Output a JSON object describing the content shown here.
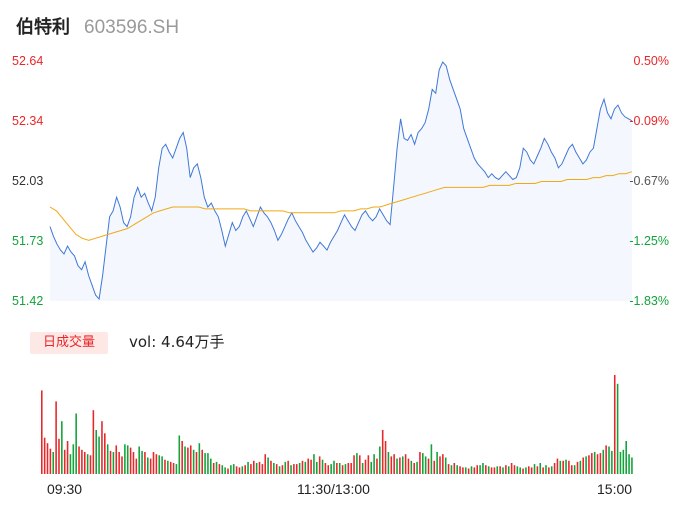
{
  "header": {
    "name": "伯特利",
    "code": "603596.SH"
  },
  "price_axis": [
    "52.64",
    "52.34",
    "52.03",
    "51.73",
    "51.42"
  ],
  "pct_axis": [
    "0.50%",
    "-0.09%",
    "-0.67%",
    "-1.25%",
    "-1.83%"
  ],
  "volume": {
    "tab_label": "日成交量",
    "summary": "vol: 4.64万手"
  },
  "time_axis": [
    "09:30",
    "11:30/13:00",
    "15:00"
  ],
  "colors": {
    "price_line": "#3f78d8",
    "avg_line": "#f0a915",
    "up": "#e8272a",
    "down": "#13a33b",
    "fill": "#f4f7fd"
  },
  "chart_data": {
    "type": "line",
    "title": "伯特利 603596.SH",
    "ylim": [
      51.42,
      52.64
    ],
    "y2lim": [
      -1.83,
      0.5
    ],
    "x_ticks": [
      "09:30",
      "11:30/13:00",
      "15:00"
    ],
    "series": [
      {
        "values": [
          51.8,
          51.75,
          51.71,
          51.68,
          51.66,
          51.7,
          51.67,
          51.65,
          51.6,
          51.58,
          51.62,
          51.55,
          51.5,
          51.45,
          51.43,
          51.55,
          51.7,
          51.85,
          51.88,
          51.95,
          51.9,
          51.82,
          51.8,
          51.85,
          51.95,
          52.0,
          51.95,
          51.97,
          51.92,
          51.88,
          51.95,
          52.1,
          52.2,
          52.22,
          52.18,
          52.15,
          52.2,
          52.25,
          52.28,
          52.2,
          52.05,
          52.1,
          52.12,
          52.05,
          51.95,
          51.9,
          51.92,
          51.88,
          51.85,
          51.78,
          51.7,
          51.76,
          51.82,
          51.78,
          51.8,
          51.85,
          51.88,
          51.84,
          51.8,
          51.85,
          51.9,
          51.87,
          51.85,
          51.82,
          51.78,
          51.73,
          51.76,
          51.8,
          51.84,
          51.87,
          51.83,
          51.8,
          51.77,
          51.73,
          51.7,
          51.67,
          51.69,
          51.72,
          51.7,
          51.68,
          51.72,
          51.75,
          51.78,
          51.82,
          51.86,
          51.83,
          51.8,
          51.78,
          51.82,
          51.86,
          51.88,
          51.85,
          51.83,
          51.85,
          51.89,
          51.86,
          51.83,
          51.81,
          52.0,
          52.2,
          52.35,
          52.25,
          52.24,
          52.27,
          52.22,
          52.28,
          52.3,
          52.33,
          52.4,
          52.5,
          52.48,
          52.6,
          52.64,
          52.62,
          52.55,
          52.5,
          52.45,
          52.4,
          52.3,
          52.25,
          52.2,
          52.15,
          52.12,
          52.1,
          52.08,
          52.05,
          52.07,
          52.05,
          52.04,
          52.06,
          52.08,
          52.06,
          52.04,
          52.05,
          52.1,
          52.2,
          52.18,
          52.14,
          52.12,
          52.16,
          52.2,
          52.25,
          52.22,
          52.18,
          52.15,
          52.1,
          52.12,
          52.16,
          52.2,
          52.22,
          52.18,
          52.15,
          52.12,
          52.14,
          52.18,
          52.2,
          52.3,
          52.4,
          52.45,
          52.38,
          52.35,
          52.4,
          52.42,
          52.38,
          52.36,
          52.35,
          52.34
        ]
      },
      {
        "values": [
          51.9,
          51.88,
          51.84,
          51.8,
          51.76,
          51.74,
          51.73,
          51.74,
          51.75,
          51.76,
          51.77,
          51.78,
          51.79,
          51.81,
          51.83,
          51.85,
          51.87,
          51.88,
          51.89,
          51.9,
          51.9,
          51.9,
          51.9,
          51.9,
          51.89,
          51.89,
          51.89,
          51.89,
          51.89,
          51.89,
          51.89,
          51.88,
          51.88,
          51.88,
          51.88,
          51.88,
          51.88,
          51.87,
          51.87,
          51.87,
          51.87,
          51.87,
          51.87,
          51.87,
          51.87,
          51.88,
          51.88,
          51.88,
          51.89,
          51.89,
          51.9,
          51.9,
          51.91,
          51.92,
          51.93,
          51.94,
          51.95,
          51.96,
          51.97,
          51.98,
          51.99,
          52.0,
          52.0,
          52.0,
          52.0,
          52.0,
          52.0,
          52.0,
          52.01,
          52.01,
          52.01,
          52.01,
          52.02,
          52.02,
          52.02,
          52.02,
          52.03,
          52.03,
          52.03,
          52.03,
          52.04,
          52.04,
          52.04,
          52.04,
          52.05,
          52.05,
          52.06,
          52.06,
          52.07,
          52.07,
          52.08
        ]
      }
    ],
    "volume_bars": [
      0.76,
      0.33,
      0.28,
      0.23,
      0.2,
      0.66,
      0.32,
      0.48,
      0.22,
      0.3,
      0.18,
      0.27,
      0.55,
      0.25,
      0.22,
      0.2,
      0.18,
      0.17,
      0.58,
      0.4,
      0.34,
      0.48,
      0.37,
      0.27,
      0.21,
      0.2,
      0.26,
      0.2,
      0.16,
      0.27,
      0.26,
      0.24,
      0.2,
      0.14,
      0.25,
      0.21,
      0.2,
      0.15,
      0.14,
      0.2,
      0.18,
      0.17,
      0.16,
      0.13,
      0.12,
      0.11,
      0.1,
      0.09,
      0.35,
      0.3,
      0.25,
      0.24,
      0.26,
      0.22,
      0.2,
      0.28,
      0.22,
      0.19,
      0.19,
      0.14,
      0.1,
      0.11,
      0.09,
      0.08,
      0.06,
      0.05,
      0.08,
      0.09,
      0.07,
      0.06,
      0.07,
      0.08,
      0.11,
      0.09,
      0.12,
      0.1,
      0.11,
      0.09,
      0.18,
      0.15,
      0.12,
      0.1,
      0.09,
      0.07,
      0.08,
      0.11,
      0.12,
      0.08,
      0.09,
      0.09,
      0.1,
      0.12,
      0.11,
      0.14,
      0.13,
      0.18,
      0.11,
      0.16,
      0.13,
      0.1,
      0.08,
      0.09,
      0.12,
      0.1,
      0.1,
      0.08,
      0.09,
      0.1,
      0.1,
      0.17,
      0.19,
      0.17,
      0.1,
      0.13,
      0.17,
      0.11,
      0.18,
      0.14,
      0.25,
      0.4,
      0.3,
      0.2,
      0.16,
      0.18,
      0.14,
      0.15,
      0.16,
      0.18,
      0.14,
      0.12,
      0.1,
      0.11,
      0.2,
      0.19,
      0.16,
      0.14,
      0.27,
      0.12,
      0.2,
      0.16,
      0.18,
      0.15,
      0.09,
      0.08,
      0.1,
      0.08,
      0.07,
      0.06,
      0.06,
      0.05,
      0.07,
      0.06,
      0.08,
      0.08,
      0.1,
      0.08,
      0.07,
      0.06,
      0.06,
      0.07,
      0.07,
      0.06,
      0.08,
      0.07,
      0.1,
      0.08,
      0.07,
      0.06,
      0.05,
      0.06,
      0.07,
      0.06,
      0.09,
      0.07,
      0.1,
      0.06,
      0.08,
      0.06,
      0.07,
      0.1,
      0.14,
      0.12,
      0.12,
      0.13,
      0.12,
      0.08,
      0.08,
      0.11,
      0.12,
      0.15,
      0.16,
      0.17,
      0.19,
      0.2,
      0.18,
      0.19,
      0.22,
      0.26,
      0.25,
      0.21,
      0.9,
      0.82,
      0.2,
      0.22,
      0.3,
      0.18,
      0.15
    ],
    "volume_dirs": [
      1,
      1,
      1,
      1,
      0,
      1,
      1,
      0,
      1,
      1,
      0,
      0,
      0,
      1,
      1,
      1,
      0,
      1,
      1,
      0,
      0,
      1,
      1,
      0,
      1,
      0,
      1,
      1,
      1,
      0,
      0,
      1,
      1,
      1,
      0,
      0,
      1,
      0,
      1,
      1,
      1,
      0,
      0,
      1,
      0,
      1,
      1,
      0,
      0,
      1,
      0,
      1,
      1,
      0,
      1,
      0,
      1,
      0,
      0,
      0,
      1,
      0,
      1,
      0,
      0,
      1,
      0,
      0,
      1,
      1,
      0,
      1,
      0,
      1,
      1,
      0,
      1,
      1,
      1,
      0,
      1,
      0,
      1,
      0,
      1,
      0,
      1,
      0,
      1,
      1,
      0,
      1,
      0,
      1,
      1,
      0,
      0,
      1,
      0,
      1,
      1,
      0,
      0,
      1,
      0,
      1,
      0,
      1,
      1,
      1,
      0,
      1,
      0,
      1,
      1,
      0,
      0,
      1,
      0,
      1,
      1,
      0,
      1,
      1,
      0,
      1,
      0,
      1,
      1,
      0,
      1,
      0,
      1,
      0,
      0,
      1,
      0,
      1,
      0,
      1,
      1,
      0,
      1,
      0,
      1,
      0,
      1,
      1,
      0,
      1,
      0,
      1,
      1,
      0,
      0,
      1,
      0,
      1,
      1,
      0,
      1,
      0,
      1,
      0,
      1,
      1,
      0,
      0,
      1,
      0,
      1,
      1,
      0,
      1,
      0,
      1,
      0,
      1,
      0,
      1,
      1,
      0,
      1,
      0,
      1,
      1,
      0,
      1,
      0,
      1,
      0,
      1,
      1,
      0,
      1,
      1,
      0,
      1,
      0,
      0,
      1,
      0
    ]
  }
}
